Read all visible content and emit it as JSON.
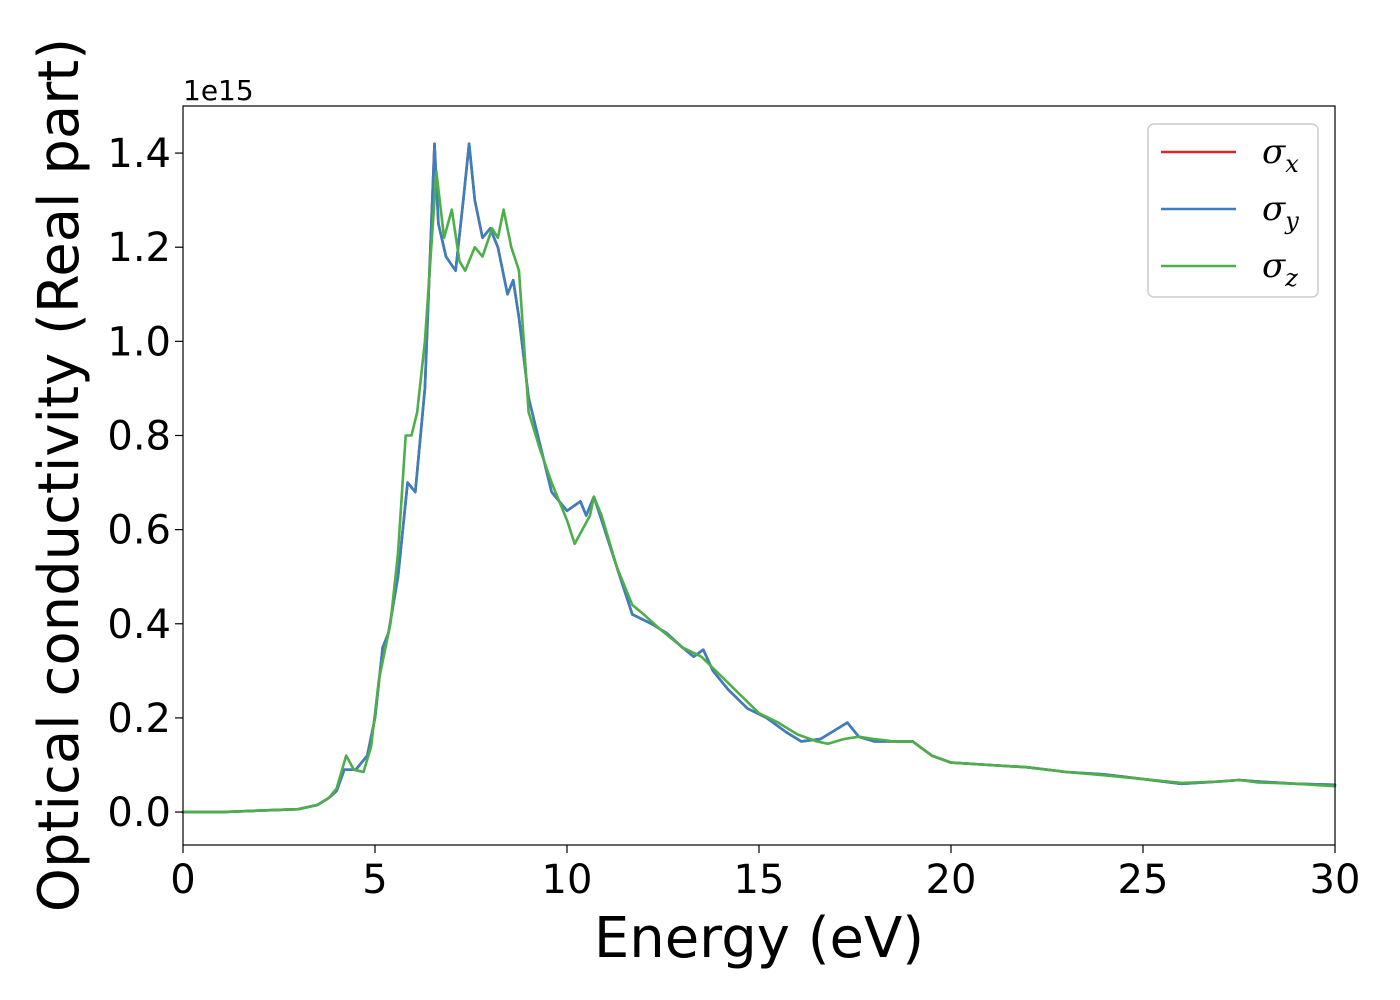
{
  "chart_data": {
    "type": "line",
    "title": "",
    "xlabel": "Energy (eV)",
    "ylabel": "Optical conductivity (Real part)",
    "y_offset_label": "1e15",
    "y_scale": 1000000000000000.0,
    "xlim": [
      0,
      30
    ],
    "ylim": [
      -0.07,
      1.5
    ],
    "x_ticks": [
      0,
      5,
      10,
      15,
      20,
      25,
      30
    ],
    "x_tick_labels": [
      "0",
      "5",
      "10",
      "15",
      "20",
      "25",
      "30"
    ],
    "y_ticks": [
      0.0,
      0.2,
      0.4,
      0.6,
      0.8,
      1.0,
      1.2,
      1.4
    ],
    "y_tick_labels": [
      "0.0",
      "0.2",
      "0.4",
      "0.6",
      "0.8",
      "1.0",
      "1.2",
      "1.4"
    ],
    "grid": false,
    "legend_position": "top-right",
    "series": [
      {
        "name": "σx",
        "symbol": "σ",
        "subscript": "x",
        "color": "#d62728",
        "x": [
          0,
          1,
          2,
          3,
          3.5,
          3.8,
          4.0,
          4.2,
          4.5,
          4.8,
          5.0,
          5.2,
          5.35,
          5.6,
          5.85,
          6.05,
          6.3,
          6.55,
          6.65,
          6.85,
          7.1,
          7.3,
          7.45,
          7.6,
          7.8,
          8.0,
          8.2,
          8.45,
          8.6,
          8.75,
          9.0,
          9.3,
          9.6,
          10.0,
          10.35,
          10.5,
          10.7,
          10.9,
          11.3,
          11.7,
          12.2,
          12.6,
          13.0,
          13.3,
          13.55,
          13.8,
          14.2,
          14.7,
          15.2,
          15.7,
          16.1,
          16.6,
          17.0,
          17.3,
          17.6,
          18.0,
          18.5,
          19.0,
          19.5,
          20.0,
          21,
          22,
          23,
          24,
          25,
          26,
          27,
          27.5,
          28,
          29,
          30
        ],
        "y": [
          0.0,
          0.0,
          0.003,
          0.006,
          0.015,
          0.03,
          0.045,
          0.09,
          0.09,
          0.12,
          0.2,
          0.35,
          0.38,
          0.5,
          0.7,
          0.68,
          0.9,
          1.42,
          1.25,
          1.18,
          1.15,
          1.3,
          1.42,
          1.3,
          1.22,
          1.24,
          1.2,
          1.1,
          1.13,
          1.05,
          0.88,
          0.78,
          0.68,
          0.64,
          0.66,
          0.63,
          0.67,
          0.62,
          0.52,
          0.42,
          0.4,
          0.38,
          0.35,
          0.33,
          0.345,
          0.3,
          0.26,
          0.22,
          0.2,
          0.17,
          0.15,
          0.155,
          0.175,
          0.19,
          0.16,
          0.15,
          0.15,
          0.15,
          0.12,
          0.105,
          0.1,
          0.095,
          0.085,
          0.08,
          0.07,
          0.06,
          0.065,
          0.068,
          0.065,
          0.06,
          0.058
        ]
      },
      {
        "name": "σy",
        "symbol": "σ",
        "subscript": "y",
        "color": "#3a7fbf",
        "x": [
          0,
          1,
          2,
          3,
          3.5,
          3.8,
          4.0,
          4.2,
          4.5,
          4.8,
          5.0,
          5.2,
          5.35,
          5.6,
          5.85,
          6.05,
          6.3,
          6.55,
          6.65,
          6.85,
          7.1,
          7.3,
          7.45,
          7.6,
          7.8,
          8.0,
          8.2,
          8.45,
          8.6,
          8.75,
          9.0,
          9.3,
          9.6,
          10.0,
          10.35,
          10.5,
          10.7,
          10.9,
          11.3,
          11.7,
          12.2,
          12.6,
          13.0,
          13.3,
          13.55,
          13.8,
          14.2,
          14.7,
          15.2,
          15.7,
          16.1,
          16.6,
          17.0,
          17.3,
          17.6,
          18.0,
          18.5,
          19.0,
          19.5,
          20.0,
          21,
          22,
          23,
          24,
          25,
          26,
          27,
          27.5,
          28,
          29,
          30
        ],
        "y": [
          0.0,
          0.0,
          0.003,
          0.006,
          0.015,
          0.03,
          0.045,
          0.09,
          0.09,
          0.12,
          0.2,
          0.35,
          0.38,
          0.5,
          0.7,
          0.68,
          0.9,
          1.42,
          1.25,
          1.18,
          1.15,
          1.3,
          1.42,
          1.3,
          1.22,
          1.24,
          1.2,
          1.1,
          1.13,
          1.05,
          0.88,
          0.78,
          0.68,
          0.64,
          0.66,
          0.63,
          0.67,
          0.62,
          0.52,
          0.42,
          0.4,
          0.38,
          0.35,
          0.33,
          0.345,
          0.3,
          0.26,
          0.22,
          0.2,
          0.17,
          0.15,
          0.155,
          0.175,
          0.19,
          0.16,
          0.15,
          0.15,
          0.15,
          0.12,
          0.105,
          0.1,
          0.095,
          0.085,
          0.08,
          0.07,
          0.06,
          0.065,
          0.068,
          0.065,
          0.06,
          0.058
        ]
      },
      {
        "name": "σz",
        "symbol": "σ",
        "subscript": "z",
        "color": "#4daf4a",
        "x": [
          0,
          1,
          2,
          3,
          3.5,
          3.8,
          4.0,
          4.25,
          4.45,
          4.7,
          4.9,
          5.1,
          5.4,
          5.6,
          5.8,
          5.95,
          6.1,
          6.3,
          6.6,
          6.8,
          7.0,
          7.2,
          7.35,
          7.6,
          7.8,
          8.05,
          8.2,
          8.35,
          8.55,
          8.75,
          9.0,
          9.3,
          9.6,
          10.0,
          10.2,
          10.4,
          10.6,
          10.7,
          10.9,
          11.3,
          11.7,
          12.0,
          12.4,
          13.0,
          13.5,
          14.0,
          14.5,
          15.0,
          15.5,
          16.0,
          16.5,
          16.8,
          17.2,
          17.6,
          18.0,
          18.5,
          19.0,
          19.5,
          20.0,
          21,
          22,
          23,
          24,
          25,
          26,
          27,
          27.5,
          28,
          29,
          30
        ],
        "y": [
          0.0,
          0.0,
          0.003,
          0.006,
          0.015,
          0.03,
          0.05,
          0.12,
          0.09,
          0.085,
          0.14,
          0.28,
          0.4,
          0.55,
          0.8,
          0.8,
          0.85,
          1.0,
          1.36,
          1.22,
          1.28,
          1.17,
          1.15,
          1.2,
          1.18,
          1.24,
          1.22,
          1.28,
          1.2,
          1.15,
          0.85,
          0.77,
          0.7,
          0.62,
          0.57,
          0.6,
          0.63,
          0.67,
          0.63,
          0.52,
          0.44,
          0.42,
          0.39,
          0.35,
          0.33,
          0.29,
          0.25,
          0.21,
          0.19,
          0.165,
          0.15,
          0.145,
          0.155,
          0.16,
          0.155,
          0.15,
          0.15,
          0.12,
          0.105,
          0.1,
          0.095,
          0.085,
          0.078,
          0.07,
          0.062,
          0.065,
          0.068,
          0.063,
          0.06,
          0.055
        ]
      }
    ]
  }
}
